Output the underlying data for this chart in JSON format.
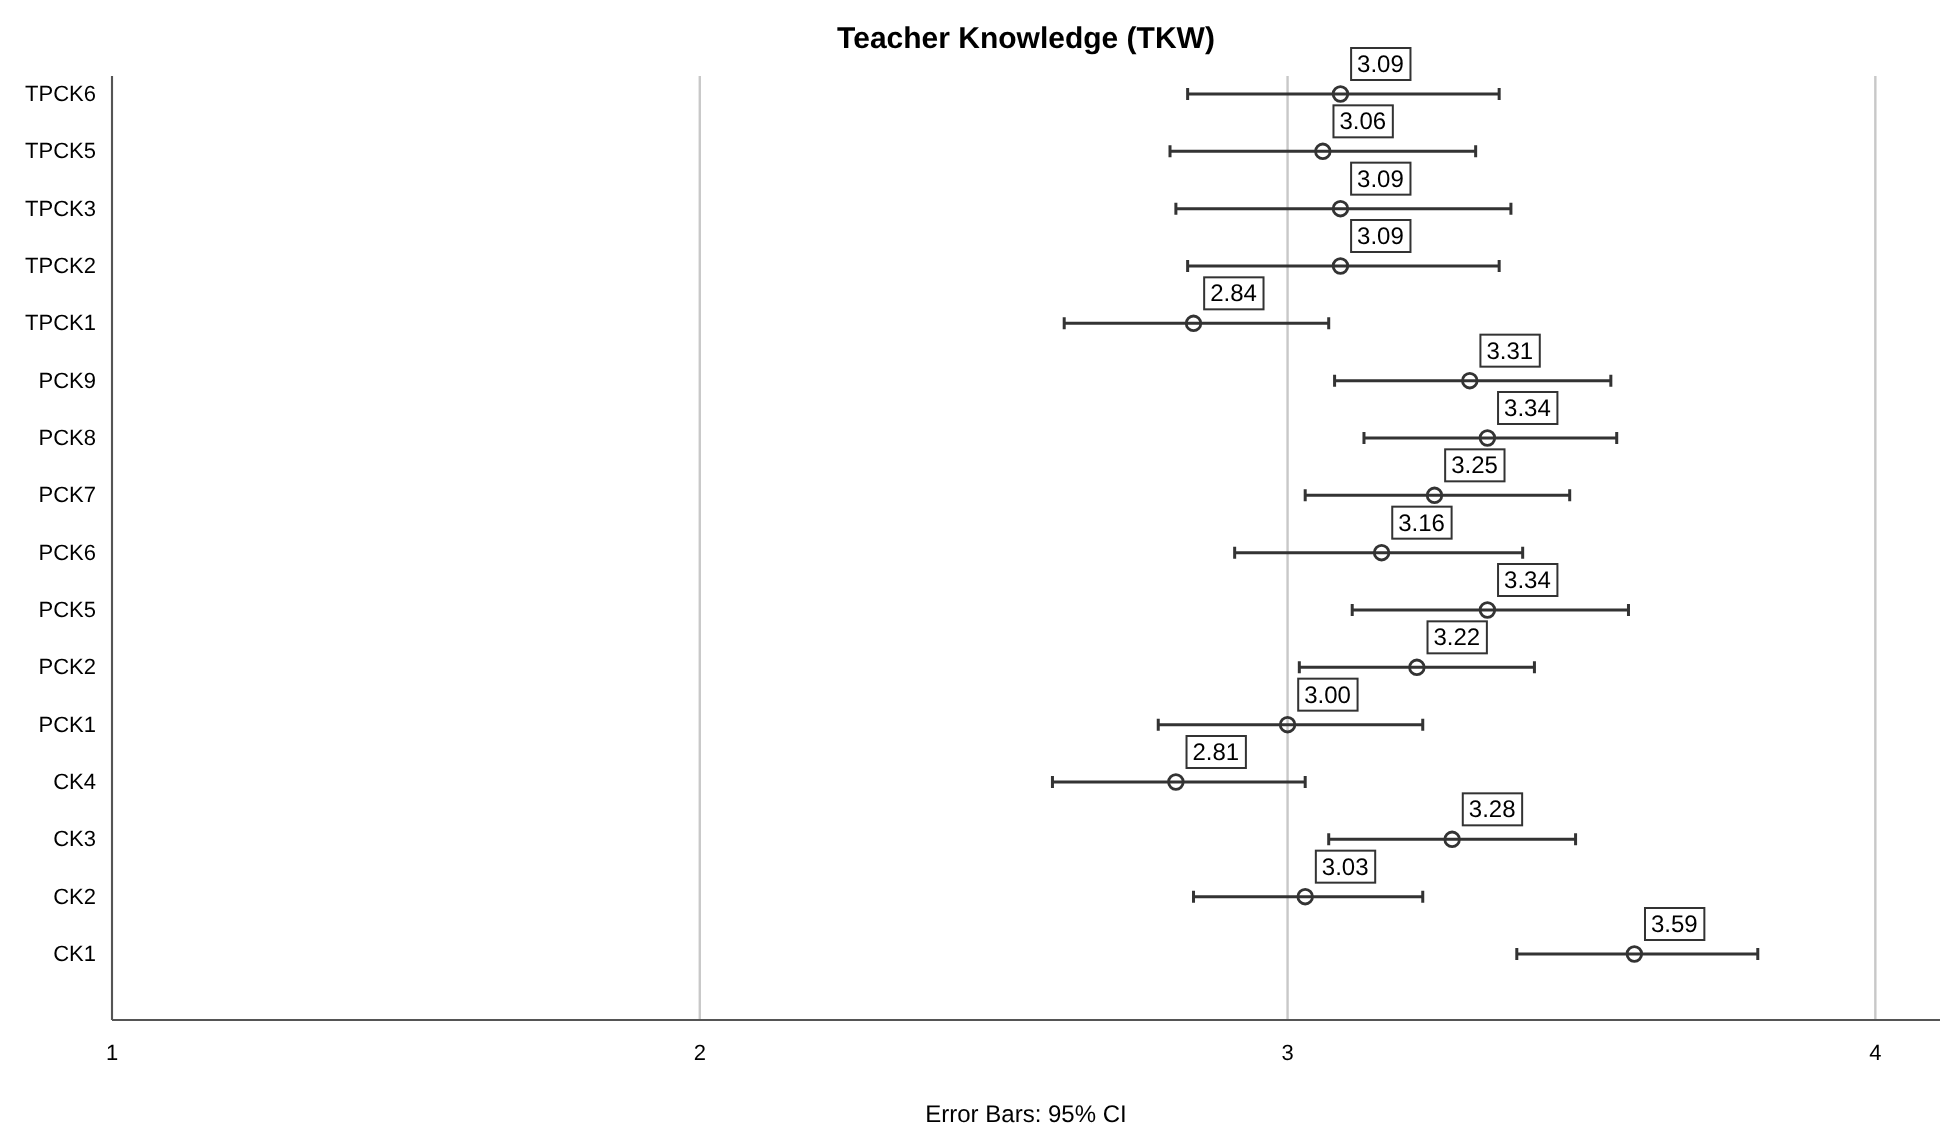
{
  "chart_data": {
    "type": "scatter",
    "orientation": "horizontal",
    "title": "Teacher Knowledge (TKW)",
    "categories": [
      "TPCK6",
      "TPCK5",
      "TPCK3",
      "TPCK2",
      "TPCK1",
      "PCK9",
      "PCK8",
      "PCK7",
      "PCK6",
      "PCK5",
      "PCK2",
      "PCK1",
      "CK4",
      "CK3",
      "CK2",
      "CK1"
    ],
    "values": [
      3.09,
      3.06,
      3.09,
      3.09,
      2.84,
      3.31,
      3.34,
      3.25,
      3.16,
      3.34,
      3.22,
      3.0,
      2.81,
      3.28,
      3.03,
      3.59
    ],
    "value_labels": [
      "3.09",
      "3.06",
      "3.09",
      "3.09",
      "2.84",
      "3.31",
      "3.34",
      "3.25",
      "3.16",
      "3.34",
      "3.22",
      "3.00",
      "2.81",
      "3.28",
      "3.03",
      "3.59"
    ],
    "errors": [
      [
        2.83,
        3.36
      ],
      [
        2.8,
        3.32
      ],
      [
        2.81,
        3.38
      ],
      [
        2.83,
        3.36
      ],
      [
        2.62,
        3.07
      ],
      [
        3.08,
        3.55
      ],
      [
        3.13,
        3.56
      ],
      [
        3.03,
        3.48
      ],
      [
        2.91,
        3.4
      ],
      [
        3.11,
        3.58
      ],
      [
        3.02,
        3.42
      ],
      [
        2.78,
        3.23
      ],
      [
        2.6,
        3.03
      ],
      [
        3.07,
        3.49
      ],
      [
        2.84,
        3.23
      ],
      [
        3.39,
        3.8
      ]
    ],
    "color": "#333333",
    "marker": "circle",
    "xlim": [
      1,
      4.11
    ],
    "xticks": [
      1,
      2,
      3,
      4
    ],
    "grid": "x",
    "annotations": [
      "Error Bars: 95% CI"
    ]
  }
}
